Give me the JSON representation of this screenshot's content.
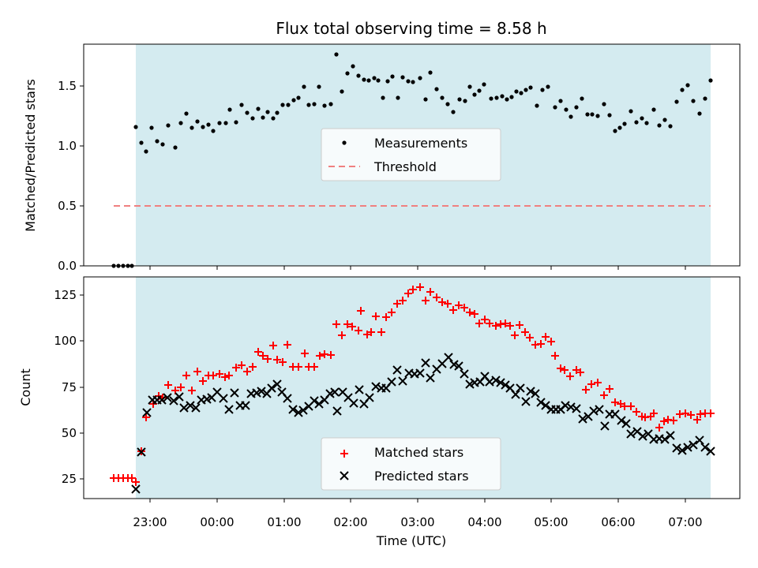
{
  "chart_data": {
    "title": "Flux total observing time = 8.58 h",
    "xlabel": "Time (UTC)",
    "x_ticks": [
      "23:00",
      "00:00",
      "01:00",
      "02:00",
      "03:00",
      "04:00",
      "05:00",
      "06:00",
      "07:00"
    ],
    "shading_color": "#d4ebf0",
    "top": {
      "type": "scatter",
      "ylabel": "Matched/Predicted stars",
      "ylim": [
        0,
        1.85
      ],
      "y_ticks": [
        "0.0",
        "0.5",
        "1.0",
        "1.5"
      ],
      "legend": [
        "Measurements",
        "Threshold"
      ],
      "legend_placement": "center",
      "threshold": 0.5,
      "threshold_color": "#f08080",
      "marker_color": "#000000"
    },
    "bottom": {
      "type": "scatter",
      "ylabel": "Count",
      "ylim": [
        13,
        137
      ],
      "y_ticks": [
        "25",
        "50",
        "75",
        "100",
        "125"
      ],
      "legend": [
        "Matched stars",
        "Predicted stars"
      ],
      "legend_placement": "lower center",
      "matched_color": "#ff0000",
      "predicted_color": "#000000"
    }
  }
}
